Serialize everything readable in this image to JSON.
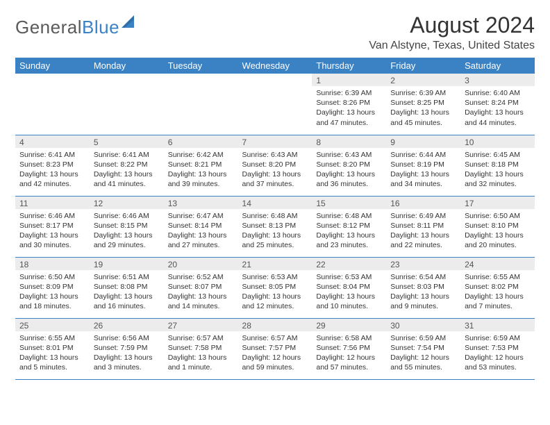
{
  "logo": {
    "text_gray": "General",
    "text_blue": "Blue"
  },
  "title": "August 2024",
  "location": "Van Alstyne, Texas, United States",
  "colors": {
    "header_bg": "#3b82c4",
    "header_text": "#ffffff",
    "daynum_bg": "#ececec",
    "body_text": "#333333",
    "rule": "#3b82c4"
  },
  "weekdays": [
    "Sunday",
    "Monday",
    "Tuesday",
    "Wednesday",
    "Thursday",
    "Friday",
    "Saturday"
  ],
  "weeks": [
    [
      null,
      null,
      null,
      null,
      {
        "n": "1",
        "sr": "6:39 AM",
        "ss": "8:26 PM",
        "dl": "13 hours and 47 minutes."
      },
      {
        "n": "2",
        "sr": "6:39 AM",
        "ss": "8:25 PM",
        "dl": "13 hours and 45 minutes."
      },
      {
        "n": "3",
        "sr": "6:40 AM",
        "ss": "8:24 PM",
        "dl": "13 hours and 44 minutes."
      }
    ],
    [
      {
        "n": "4",
        "sr": "6:41 AM",
        "ss": "8:23 PM",
        "dl": "13 hours and 42 minutes."
      },
      {
        "n": "5",
        "sr": "6:41 AM",
        "ss": "8:22 PM",
        "dl": "13 hours and 41 minutes."
      },
      {
        "n": "6",
        "sr": "6:42 AM",
        "ss": "8:21 PM",
        "dl": "13 hours and 39 minutes."
      },
      {
        "n": "7",
        "sr": "6:43 AM",
        "ss": "8:20 PM",
        "dl": "13 hours and 37 minutes."
      },
      {
        "n": "8",
        "sr": "6:43 AM",
        "ss": "8:20 PM",
        "dl": "13 hours and 36 minutes."
      },
      {
        "n": "9",
        "sr": "6:44 AM",
        "ss": "8:19 PM",
        "dl": "13 hours and 34 minutes."
      },
      {
        "n": "10",
        "sr": "6:45 AM",
        "ss": "8:18 PM",
        "dl": "13 hours and 32 minutes."
      }
    ],
    [
      {
        "n": "11",
        "sr": "6:46 AM",
        "ss": "8:17 PM",
        "dl": "13 hours and 30 minutes."
      },
      {
        "n": "12",
        "sr": "6:46 AM",
        "ss": "8:15 PM",
        "dl": "13 hours and 29 minutes."
      },
      {
        "n": "13",
        "sr": "6:47 AM",
        "ss": "8:14 PM",
        "dl": "13 hours and 27 minutes."
      },
      {
        "n": "14",
        "sr": "6:48 AM",
        "ss": "8:13 PM",
        "dl": "13 hours and 25 minutes."
      },
      {
        "n": "15",
        "sr": "6:48 AM",
        "ss": "8:12 PM",
        "dl": "13 hours and 23 minutes."
      },
      {
        "n": "16",
        "sr": "6:49 AM",
        "ss": "8:11 PM",
        "dl": "13 hours and 22 minutes."
      },
      {
        "n": "17",
        "sr": "6:50 AM",
        "ss": "8:10 PM",
        "dl": "13 hours and 20 minutes."
      }
    ],
    [
      {
        "n": "18",
        "sr": "6:50 AM",
        "ss": "8:09 PM",
        "dl": "13 hours and 18 minutes."
      },
      {
        "n": "19",
        "sr": "6:51 AM",
        "ss": "8:08 PM",
        "dl": "13 hours and 16 minutes."
      },
      {
        "n": "20",
        "sr": "6:52 AM",
        "ss": "8:07 PM",
        "dl": "13 hours and 14 minutes."
      },
      {
        "n": "21",
        "sr": "6:53 AM",
        "ss": "8:05 PM",
        "dl": "13 hours and 12 minutes."
      },
      {
        "n": "22",
        "sr": "6:53 AM",
        "ss": "8:04 PM",
        "dl": "13 hours and 10 minutes."
      },
      {
        "n": "23",
        "sr": "6:54 AM",
        "ss": "8:03 PM",
        "dl": "13 hours and 9 minutes."
      },
      {
        "n": "24",
        "sr": "6:55 AM",
        "ss": "8:02 PM",
        "dl": "13 hours and 7 minutes."
      }
    ],
    [
      {
        "n": "25",
        "sr": "6:55 AM",
        "ss": "8:01 PM",
        "dl": "13 hours and 5 minutes."
      },
      {
        "n": "26",
        "sr": "6:56 AM",
        "ss": "7:59 PM",
        "dl": "13 hours and 3 minutes."
      },
      {
        "n": "27",
        "sr": "6:57 AM",
        "ss": "7:58 PM",
        "dl": "13 hours and 1 minute."
      },
      {
        "n": "28",
        "sr": "6:57 AM",
        "ss": "7:57 PM",
        "dl": "12 hours and 59 minutes."
      },
      {
        "n": "29",
        "sr": "6:58 AM",
        "ss": "7:56 PM",
        "dl": "12 hours and 57 minutes."
      },
      {
        "n": "30",
        "sr": "6:59 AM",
        "ss": "7:54 PM",
        "dl": "12 hours and 55 minutes."
      },
      {
        "n": "31",
        "sr": "6:59 AM",
        "ss": "7:53 PM",
        "dl": "12 hours and 53 minutes."
      }
    ]
  ],
  "labels": {
    "sunrise": "Sunrise:",
    "sunset": "Sunset:",
    "daylight": "Daylight:"
  }
}
